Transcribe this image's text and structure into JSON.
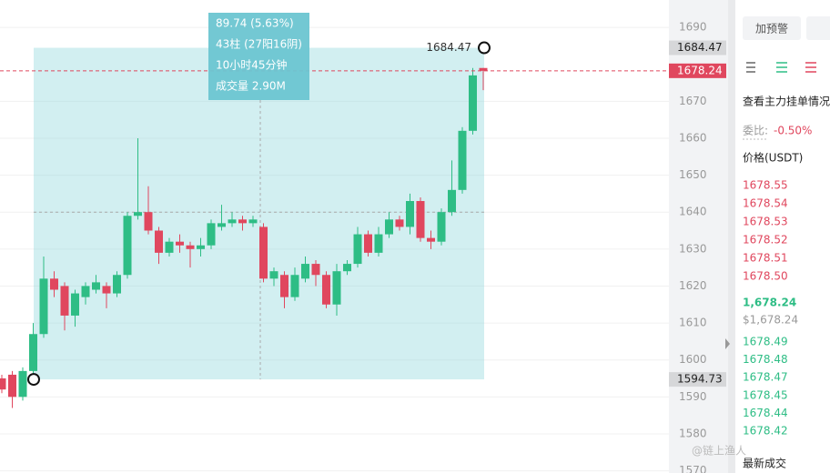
{
  "chart_data": {
    "type": "candlestick",
    "open": [
      1595,
      1596,
      1590,
      1597,
      1607,
      1622,
      1620,
      1612,
      1617,
      1619,
      1620,
      1618,
      1623,
      1639,
      1640,
      1635,
      1629,
      1632,
      1631,
      1630,
      1631,
      1636,
      1637,
      1638,
      1637,
      1636,
      1622,
      1623,
      1617,
      1622,
      1626,
      1623,
      1615,
      1624,
      1626,
      1634,
      1629,
      1634,
      1638,
      1636,
      1643,
      1633,
      1632,
      1640,
      1646,
      1662,
      1679
    ],
    "close": [
      1592,
      1590,
      1597,
      1607,
      1622,
      1619,
      1612,
      1618,
      1620,
      1621,
      1618,
      1623,
      1639,
      1640,
      1635,
      1629,
      1632,
      1631,
      1630,
      1631,
      1637,
      1637,
      1638,
      1637,
      1638,
      1622,
      1624,
      1617,
      1623,
      1626,
      1623,
      1615,
      1624,
      1626,
      1634,
      1629,
      1634,
      1638,
      1636,
      1643,
      1633,
      1632,
      1640,
      1646,
      1662,
      1677,
      1678.24
    ],
    "high": [
      1596,
      1597,
      1598,
      1610,
      1628,
      1624,
      1621,
      1619,
      1621,
      1623,
      1621,
      1624,
      1640,
      1660,
      1647,
      1636,
      1633,
      1634,
      1632,
      1633,
      1638,
      1642,
      1640,
      1639,
      1639,
      1637,
      1625,
      1624,
      1625,
      1628,
      1627,
      1624,
      1626,
      1627,
      1636,
      1635,
      1636,
      1640,
      1639,
      1645,
      1644,
      1635,
      1641,
      1654,
      1663,
      1679,
      1679
    ],
    "low": [
      1591,
      1587,
      1589,
      1595,
      1606,
      1617,
      1608,
      1609,
      1615,
      1618,
      1614,
      1617,
      1622,
      1638,
      1634,
      1626,
      1628,
      1629,
      1625,
      1628,
      1630,
      1635,
      1636,
      1635,
      1636,
      1621,
      1620,
      1614,
      1616,
      1621,
      1620,
      1614,
      1612,
      1623,
      1625,
      1628,
      1628,
      1633,
      1635,
      1634,
      1632,
      1630,
      1631,
      1639,
      1645,
      1661,
      1673
    ],
    "up_color": "#2ebd85",
    "down_color": "#e0475e",
    "ylim": [
      1569.4,
      1697.4
    ],
    "yticks": [
      1690,
      1670,
      1660,
      1650,
      1640,
      1630,
      1620,
      1610,
      1600,
      1590,
      1580,
      1570
    ],
    "range": {
      "high": 1684.47,
      "low": 1594.73
    },
    "last_price": 1678.24,
    "tooltip": [
      "89.74 (5.63%)",
      "43柱 (27阳16阴)",
      "10小时45分钟",
      "成交量 2.90M"
    ]
  },
  "panel": {
    "buttons": [
      "加预警"
    ],
    "link": "查看主力挂单情况",
    "ratio_label": "委比:",
    "ratio": "-0.50%",
    "price_header": "价格(USDT)",
    "asks": [
      "1678.55",
      "1678.54",
      "1678.53",
      "1678.52",
      "1678.51",
      "1678.50"
    ],
    "price": "1,678.24",
    "price_usd": "$1,678.24",
    "bids": [
      "1678.49",
      "1678.48",
      "1678.47",
      "1678.45",
      "1678.44",
      "1678.42"
    ],
    "footer": "最新成交",
    "watermark": "@链上渔人"
  }
}
